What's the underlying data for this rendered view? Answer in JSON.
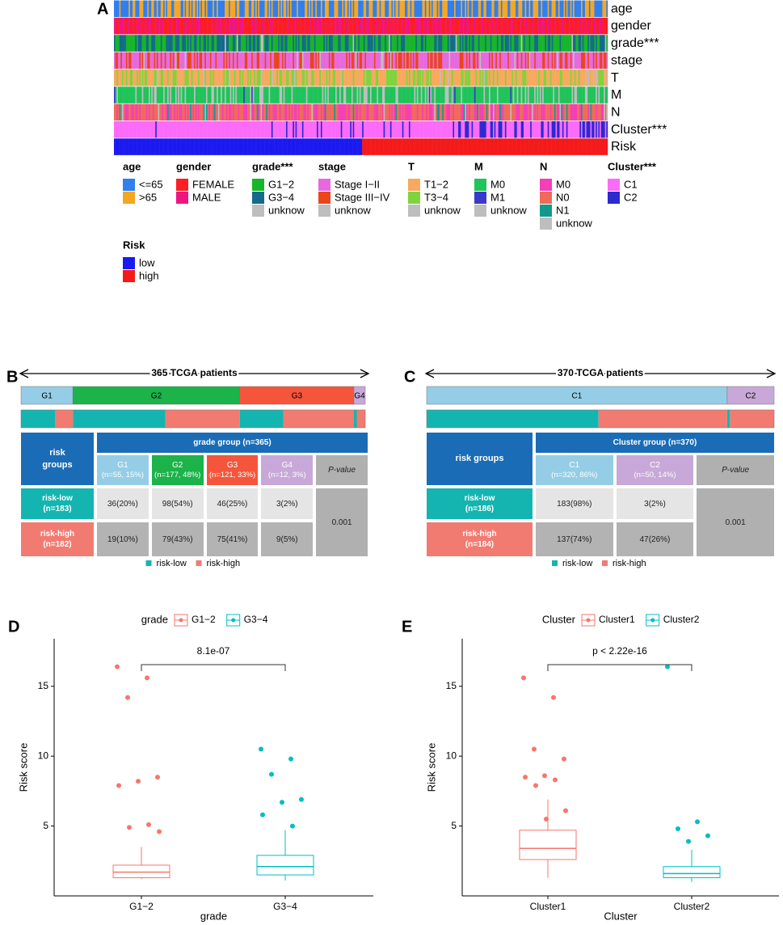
{
  "panel_labels": [
    "A",
    "B",
    "C",
    "D",
    "E"
  ],
  "heatmap": {
    "tracks": [
      {
        "title": "age",
        "items": [
          {
            "label": "<=65",
            "color": "#2f7fef"
          },
          {
            "label": ">65",
            "color": "#f5a623"
          }
        ]
      },
      {
        "title": "gender",
        "items": [
          {
            "label": "FEMALE",
            "color": "#fb1e24"
          },
          {
            "label": "MALE",
            "color": "#ef1580"
          }
        ]
      },
      {
        "title": "grade***",
        "items": [
          {
            "label": "G1−2",
            "color": "#17b52a"
          },
          {
            "label": "G3−4",
            "color": "#136a8c"
          },
          {
            "label": "unknow",
            "color": "#bebebe"
          }
        ]
      },
      {
        "title": "stage",
        "items": [
          {
            "label": "Stage I−II",
            "color": "#e769dd"
          },
          {
            "label": "Stage III−IV",
            "color": "#ea451b"
          },
          {
            "label": "unknow",
            "color": "#bebebe"
          }
        ]
      },
      {
        "title": "T",
        "items": [
          {
            "label": "T1−2",
            "color": "#f8a95e"
          },
          {
            "label": "T3−4",
            "color": "#7fd43e"
          },
          {
            "label": "unknow",
            "color": "#bebebe"
          }
        ]
      },
      {
        "title": "M",
        "items": [
          {
            "label": "M0",
            "color": "#1fc45a"
          },
          {
            "label": "M1",
            "color": "#3a3ac8"
          },
          {
            "label": "unknow",
            "color": "#bebebe"
          }
        ]
      },
      {
        "title": "N",
        "items": [
          {
            "label": "M0",
            "color": "#f43fb6"
          },
          {
            "label": "N0",
            "color": "#f06a5a"
          },
          {
            "label": "N1",
            "color": "#119a8c"
          },
          {
            "label": "unknow",
            "color": "#bebebe"
          }
        ]
      },
      {
        "title": "Cluster***",
        "items": [
          {
            "label": "C1",
            "color": "#fb6bf9"
          },
          {
            "label": "C2",
            "color": "#2a2ad0"
          }
        ]
      },
      {
        "title": "Risk",
        "items": [
          {
            "label": "low",
            "color": "#1a1af0"
          },
          {
            "label": "high",
            "color": "#f41a1a"
          }
        ]
      }
    ]
  },
  "stacked": [
    {
      "title": "365 TCGA patients",
      "groups": [
        "G1",
        "G2",
        "G3",
        "G4"
      ],
      "group_colors": [
        "#95cde6",
        "#1bb34a",
        "#f5553a",
        "#c8a8d8"
      ],
      "group_n": [
        55,
        177,
        121,
        12
      ],
      "risk_series": [
        {
          "name": "risk-low",
          "color": "#14b5b0",
          "values": [
            36,
            98,
            46,
            3
          ]
        },
        {
          "name": "risk-high",
          "color": "#f27b71",
          "values": [
            19,
            79,
            75,
            9
          ]
        }
      ],
      "table": {
        "corner": "risk groups",
        "header": "grade group (n=365)",
        "columns": [
          {
            "name": "G1",
            "sub": "(n=55, 15%)"
          },
          {
            "name": "G2",
            "sub": "(n=177, 48%)"
          },
          {
            "name": "G3",
            "sub": "(n=121, 33%)"
          },
          {
            "name": "G4",
            "sub": "(n=12, 3%)"
          }
        ],
        "pvalue_header": "P-value",
        "pvalue": "0.001",
        "rows": [
          {
            "name": "risk-low",
            "sub": "(n=183)",
            "cells": [
              "36(20%)",
              "98(54%)",
              "46(25%)",
              "3(2%)"
            ]
          },
          {
            "name": "risk-high",
            "sub": "(n=182)",
            "cells": [
              "19(10%)",
              "79(43%)",
              "75(41%)",
              "9(5%)"
            ]
          }
        ]
      }
    },
    {
      "title": "370 TCGA patients",
      "groups": [
        "C1",
        "C2"
      ],
      "group_colors": [
        "#95cde6",
        "#c8a8d8"
      ],
      "group_n": [
        320,
        50
      ],
      "risk_series": [
        {
          "name": "risk-low",
          "color": "#14b5b0",
          "values": [
            183,
            3
          ]
        },
        {
          "name": "risk-high",
          "color": "#f27b71",
          "values": [
            137,
            47
          ]
        }
      ],
      "table": {
        "corner": "risk groups",
        "header": "Cluster group (n=370)",
        "columns": [
          {
            "name": "C1",
            "sub": "(n=320, 86%)"
          },
          {
            "name": "C2",
            "sub": "(n=50, 14%)"
          }
        ],
        "pvalue_header": "P-value",
        "pvalue": "0.001",
        "rows": [
          {
            "name": "risk-low",
            "sub": "(n=186)",
            "cells": [
              "183(98%)",
              "3(2%)"
            ]
          },
          {
            "name": "risk-high",
            "sub": "(n=184)",
            "cells": [
              "137(74%)",
              "47(26%)"
            ]
          }
        ]
      }
    }
  ],
  "boxplots": [
    {
      "type": "box",
      "legend_title": "grade",
      "xlabel": "grade",
      "ylabel": "Risk score",
      "ylim": [
        0,
        18.4
      ],
      "yticks": [
        5,
        10,
        15
      ],
      "pvalue": "8.1e-07",
      "series": [
        {
          "name": "G1−2",
          "color": "#f8766d",
          "box": {
            "min": 1.2,
            "q1": 1.3,
            "median": 1.7,
            "q3": 2.2,
            "max": 3.5
          },
          "points": [
            16.4,
            15.6,
            14.2,
            8.5,
            8.2,
            7.9,
            5.1,
            4.9,
            4.6
          ]
        },
        {
          "name": "G3−4",
          "color": "#00bfc4",
          "box": {
            "min": 1.1,
            "q1": 1.5,
            "median": 2.1,
            "q3": 2.9,
            "max": 4.7
          },
          "points": [
            10.5,
            9.8,
            8.7,
            6.9,
            6.7,
            5.8,
            5.0
          ]
        }
      ]
    },
    {
      "type": "box",
      "legend_title": "Cluster",
      "xlabel": "Cluster",
      "ylabel": "Risk score",
      "ylim": [
        0,
        18.4
      ],
      "yticks": [
        5,
        10,
        15
      ],
      "pvalue": "p < 2.22e-16",
      "series": [
        {
          "name": "Cluster1",
          "color": "#f8766d",
          "box": {
            "min": 1.3,
            "q1": 2.6,
            "median": 3.4,
            "q3": 4.7,
            "max": 6.9
          },
          "points": [
            15.6,
            14.2,
            10.5,
            9.8,
            8.6,
            8.5,
            8.3,
            7.9,
            6.1,
            5.5
          ]
        },
        {
          "name": "Cluster2",
          "color": "#00bfc4",
          "box": {
            "min": 1.0,
            "q1": 1.3,
            "median": 1.6,
            "q3": 2.1,
            "max": 3.3
          },
          "points": [
            16.4,
            5.3,
            4.8,
            4.3,
            3.9
          ]
        }
      ]
    }
  ]
}
